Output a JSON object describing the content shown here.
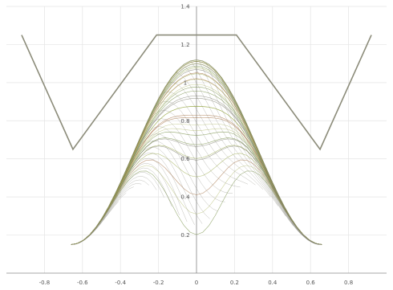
{
  "chart_data": {
    "type": "line",
    "title": "",
    "xlabel": "",
    "ylabel": "",
    "grid": true,
    "xlim": [
      -1,
      1
    ],
    "ylim": [
      0,
      1.4
    ],
    "x_ticks": [
      {
        "value": -0.8,
        "label": "-0.8"
      },
      {
        "value": -0.6,
        "label": "-0.6"
      },
      {
        "value": -0.4,
        "label": "-0.4"
      },
      {
        "value": -0.2,
        "label": "-0.2"
      },
      {
        "value": 0,
        "label": "0"
      },
      {
        "value": 0.2,
        "label": "0.2"
      },
      {
        "value": 0.4,
        "label": "0.4"
      },
      {
        "value": 0.6,
        "label": "0.6"
      },
      {
        "value": 0.8,
        "label": "0.8"
      }
    ],
    "y_ticks": [
      {
        "value": 0.2,
        "label": "0.2"
      },
      {
        "value": 0.4,
        "label": "0.4"
      },
      {
        "value": 0.6,
        "label": "0.6"
      },
      {
        "value": 0.8,
        "label": "0.8"
      },
      {
        "value": 1.0,
        "label": "1"
      },
      {
        "value": 1.2,
        "label": "1.2"
      },
      {
        "value": 1.4,
        "label": "1.4"
      }
    ],
    "series": [
      {
        "kind": "envelope",
        "color": "#8c8c7a",
        "x": [
          -0.92,
          -0.65,
          -0.21,
          0.21,
          0.65,
          0.92
        ],
        "y": [
          1.25,
          0.65,
          1.25,
          1.25,
          0.65,
          1.25
        ]
      }
    ],
    "mesh": {
      "peak_y": 1.12,
      "edge_x": 0.66,
      "edge_y": 0.15,
      "dip_y": 0.1,
      "line_count": 34,
      "colors": [
        "#6f8a3c",
        "#9aaa4a",
        "#b9c27a",
        "#7a7a6a",
        "#a06a3a"
      ]
    }
  }
}
